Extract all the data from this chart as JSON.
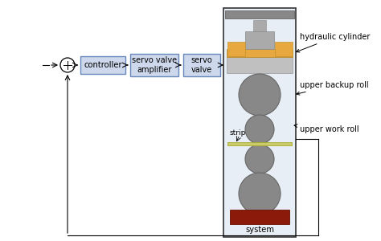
{
  "bg_color": "#ffffff",
  "box_fill": "#cdd8ec",
  "box_edge": "#6688bb",
  "system_bg": "#e8eef5",
  "system_border": "#333333",
  "top_bar_color": "#888888",
  "hydraulic_orange": "#e8a840",
  "hydraulic_gray_light": "#c0c0c0",
  "hydraulic_gray_mid": "#aaaaaa",
  "roll_gray": "#888888",
  "roll_edge": "#666666",
  "strip_color": "#c8cb68",
  "strip_edge": "#aaa830",
  "base_brown": "#8b1a0a",
  "base_edge": "#661000",
  "controller_label": "controller",
  "servo_valve_amp_label": "servo valve\namplifier",
  "servo_valve_label": "servo\nvalve",
  "system_label": "system",
  "label_hyd": "hydraulic cylinder",
  "label_ubr": "upper backup roll",
  "label_uwr": "upper work roll",
  "label_strip": "strip",
  "figure_width": 4.74,
  "figure_height": 3.0,
  "dpi": 100
}
